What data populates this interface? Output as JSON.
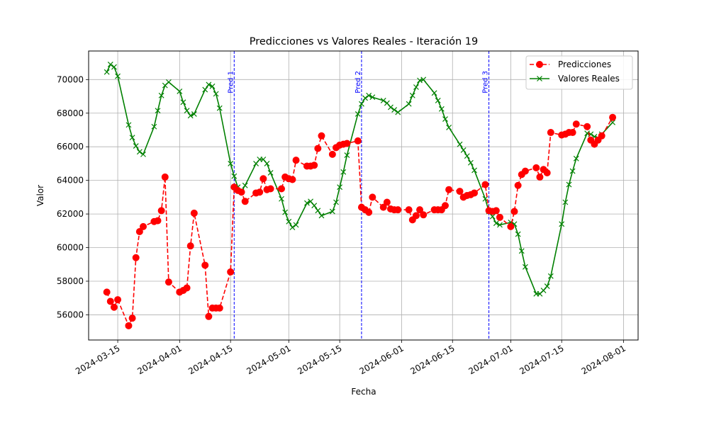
{
  "chart_data": {
    "type": "line",
    "title": "Predicciones vs Valores Reales - Iteración 19",
    "xlabel": "Fecha",
    "ylabel": "Valor",
    "x_type": "date",
    "xlim": [
      "2024-03-07",
      "2024-08-05"
    ],
    "ylim": [
      54500,
      71700
    ],
    "grid": true,
    "legend_position": "top-right",
    "x_ticks": [
      "2024-03-15",
      "2024-04-01",
      "2024-04-15",
      "2024-05-01",
      "2024-05-15",
      "2024-06-01",
      "2024-06-15",
      "2024-07-01",
      "2024-07-15",
      "2024-08-01"
    ],
    "y_ticks": [
      56000,
      58000,
      60000,
      62000,
      64000,
      66000,
      68000,
      70000
    ],
    "vertical_lines": [
      {
        "date": "2024-04-16",
        "label": "Pred 1",
        "color": "#0000ff"
      },
      {
        "date": "2024-05-21",
        "label": "Pred 2",
        "color": "#0000ff"
      },
      {
        "date": "2024-06-25",
        "label": "Pred 3",
        "color": "#0000ff"
      }
    ],
    "series": [
      {
        "name": "Predicciones",
        "color": "#ff0000",
        "style": "dashed",
        "marker": "circle",
        "points": [
          [
            "2024-03-12",
            57350
          ],
          [
            "2024-03-13",
            56800
          ],
          [
            "2024-03-14",
            56450
          ],
          [
            "2024-03-15",
            56900
          ],
          [
            "2024-03-18",
            55350
          ],
          [
            "2024-03-19",
            55800
          ],
          [
            "2024-03-20",
            59400
          ],
          [
            "2024-03-21",
            60950
          ],
          [
            "2024-03-22",
            61250
          ],
          [
            "2024-03-25",
            61550
          ],
          [
            "2024-03-26",
            61600
          ],
          [
            "2024-03-27",
            62200
          ],
          [
            "2024-03-28",
            64200
          ],
          [
            "2024-03-29",
            57950
          ],
          [
            "2024-04-01",
            57350
          ],
          [
            "2024-04-02",
            57450
          ],
          [
            "2024-04-03",
            57600
          ],
          [
            "2024-04-04",
            60100
          ],
          [
            "2024-04-05",
            62050
          ],
          [
            "2024-04-08",
            58950
          ],
          [
            "2024-04-09",
            55900
          ],
          [
            "2024-04-10",
            56400
          ],
          [
            "2024-04-11",
            56400
          ],
          [
            "2024-04-12",
            56400
          ],
          [
            "2024-04-15",
            58550
          ],
          [
            "2024-04-16",
            63600
          ],
          [
            "2024-04-17",
            63400
          ],
          [
            "2024-04-18",
            63300
          ],
          [
            "2024-04-19",
            62750
          ],
          [
            "2024-04-22",
            63250
          ],
          [
            "2024-04-23",
            63300
          ],
          [
            "2024-04-24",
            64100
          ],
          [
            "2024-04-25",
            63450
          ],
          [
            "2024-04-26",
            63500
          ],
          [
            "2024-04-29",
            63500
          ],
          [
            "2024-04-30",
            64200
          ],
          [
            "2024-05-01",
            64100
          ],
          [
            "2024-05-02",
            64050
          ],
          [
            "2024-05-03",
            65200
          ],
          [
            "2024-05-06",
            64850
          ],
          [
            "2024-05-07",
            64850
          ],
          [
            "2024-05-08",
            64900
          ],
          [
            "2024-05-09",
            65900
          ],
          [
            "2024-05-10",
            66650
          ],
          [
            "2024-05-13",
            65550
          ],
          [
            "2024-05-14",
            65950
          ],
          [
            "2024-05-15",
            66100
          ],
          [
            "2024-05-16",
            66150
          ],
          [
            "2024-05-17",
            66200
          ],
          [
            "2024-05-20",
            66350
          ],
          [
            "2024-05-21",
            62400
          ],
          [
            "2024-05-22",
            62250
          ],
          [
            "2024-05-23",
            62100
          ],
          [
            "2024-05-24",
            63000
          ],
          [
            "2024-05-27",
            62400
          ],
          [
            "2024-05-28",
            62700
          ],
          [
            "2024-05-29",
            62300
          ],
          [
            "2024-05-30",
            62250
          ],
          [
            "2024-05-31",
            62250
          ],
          [
            "2024-06-03",
            62250
          ],
          [
            "2024-06-04",
            61650
          ],
          [
            "2024-06-05",
            61900
          ],
          [
            "2024-06-06",
            62250
          ],
          [
            "2024-06-07",
            61950
          ],
          [
            "2024-06-10",
            62250
          ],
          [
            "2024-06-11",
            62250
          ],
          [
            "2024-06-12",
            62250
          ],
          [
            "2024-06-13",
            62500
          ],
          [
            "2024-06-14",
            63450
          ],
          [
            "2024-06-17",
            63350
          ],
          [
            "2024-06-18",
            63000
          ],
          [
            "2024-06-19",
            63100
          ],
          [
            "2024-06-20",
            63150
          ],
          [
            "2024-06-21",
            63250
          ],
          [
            "2024-06-24",
            63750
          ],
          [
            "2024-06-25",
            62200
          ],
          [
            "2024-06-26",
            62150
          ],
          [
            "2024-06-27",
            62200
          ],
          [
            "2024-06-28",
            61800
          ],
          [
            "2024-07-01",
            61250
          ],
          [
            "2024-07-02",
            62150
          ],
          [
            "2024-07-03",
            63700
          ],
          [
            "2024-07-04",
            64350
          ],
          [
            "2024-07-05",
            64550
          ],
          [
            "2024-07-08",
            64750
          ],
          [
            "2024-07-09",
            64200
          ],
          [
            "2024-07-10",
            64650
          ],
          [
            "2024-07-11",
            64450
          ],
          [
            "2024-07-12",
            66850
          ],
          [
            "2024-07-15",
            66700
          ],
          [
            "2024-07-16",
            66750
          ],
          [
            "2024-07-17",
            66850
          ],
          [
            "2024-07-18",
            66850
          ],
          [
            "2024-07-19",
            67350
          ],
          [
            "2024-07-22",
            67200
          ],
          [
            "2024-07-23",
            66400
          ],
          [
            "2024-07-24",
            66150
          ],
          [
            "2024-07-25",
            66400
          ],
          [
            "2024-07-26",
            66650
          ],
          [
            "2024-07-29",
            67750
          ]
        ]
      },
      {
        "name": "Valores Reales",
        "color": "#008000",
        "style": "solid",
        "marker": "x",
        "points": [
          [
            "2024-03-12",
            70450
          ],
          [
            "2024-03-13",
            70900
          ],
          [
            "2024-03-14",
            70750
          ],
          [
            "2024-03-15",
            70200
          ],
          [
            "2024-03-18",
            67300
          ],
          [
            "2024-03-19",
            66550
          ],
          [
            "2024-03-20",
            66050
          ],
          [
            "2024-03-21",
            65700
          ],
          [
            "2024-03-22",
            65550
          ],
          [
            "2024-03-25",
            67200
          ],
          [
            "2024-03-26",
            68150
          ],
          [
            "2024-03-27",
            69050
          ],
          [
            "2024-03-28",
            69650
          ],
          [
            "2024-03-29",
            69850
          ],
          [
            "2024-04-01",
            69300
          ],
          [
            "2024-04-02",
            68650
          ],
          [
            "2024-04-03",
            68150
          ],
          [
            "2024-04-04",
            67850
          ],
          [
            "2024-04-05",
            67950
          ],
          [
            "2024-04-08",
            69400
          ],
          [
            "2024-04-09",
            69700
          ],
          [
            "2024-04-10",
            69600
          ],
          [
            "2024-04-11",
            69150
          ],
          [
            "2024-04-12",
            68300
          ],
          [
            "2024-04-15",
            65000
          ],
          [
            "2024-04-16",
            64250
          ],
          [
            "2024-04-17",
            63600
          ],
          [
            "2024-04-18",
            63350
          ],
          [
            "2024-04-19",
            63700
          ],
          [
            "2024-04-22",
            65000
          ],
          [
            "2024-04-23",
            65250
          ],
          [
            "2024-04-24",
            65250
          ],
          [
            "2024-04-25",
            65000
          ],
          [
            "2024-04-26",
            64450
          ],
          [
            "2024-04-29",
            62900
          ],
          [
            "2024-04-30",
            62100
          ],
          [
            "2024-05-01",
            61550
          ],
          [
            "2024-05-02",
            61200
          ],
          [
            "2024-05-03",
            61350
          ],
          [
            "2024-05-06",
            62650
          ],
          [
            "2024-05-07",
            62750
          ],
          [
            "2024-05-08",
            62500
          ],
          [
            "2024-05-09",
            62200
          ],
          [
            "2024-05-10",
            61900
          ],
          [
            "2024-05-13",
            62150
          ],
          [
            "2024-05-14",
            62700
          ],
          [
            "2024-05-15",
            63600
          ],
          [
            "2024-05-16",
            64500
          ],
          [
            "2024-05-17",
            65500
          ],
          [
            "2024-05-20",
            67950
          ],
          [
            "2024-05-21",
            68550
          ],
          [
            "2024-05-22",
            68900
          ],
          [
            "2024-05-23",
            69050
          ],
          [
            "2024-05-24",
            68950
          ],
          [
            "2024-05-27",
            68750
          ],
          [
            "2024-05-28",
            68600
          ],
          [
            "2024-05-29",
            68350
          ],
          [
            "2024-05-30",
            68200
          ],
          [
            "2024-05-31",
            68050
          ],
          [
            "2024-06-03",
            68550
          ],
          [
            "2024-06-04",
            69050
          ],
          [
            "2024-06-05",
            69550
          ],
          [
            "2024-06-06",
            69950
          ],
          [
            "2024-06-07",
            70000
          ],
          [
            "2024-06-10",
            69200
          ],
          [
            "2024-06-11",
            68750
          ],
          [
            "2024-06-12",
            68250
          ],
          [
            "2024-06-13",
            67650
          ],
          [
            "2024-06-14",
            67150
          ],
          [
            "2024-06-17",
            66150
          ],
          [
            "2024-06-18",
            65800
          ],
          [
            "2024-06-19",
            65450
          ],
          [
            "2024-06-20",
            65050
          ],
          [
            "2024-06-21",
            64600
          ],
          [
            "2024-06-24",
            62900
          ],
          [
            "2024-06-25",
            62150
          ],
          [
            "2024-06-26",
            61850
          ],
          [
            "2024-06-27",
            61450
          ],
          [
            "2024-06-28",
            61350
          ],
          [
            "2024-07-01",
            61500
          ],
          [
            "2024-07-02",
            61400
          ],
          [
            "2024-07-03",
            60800
          ],
          [
            "2024-07-04",
            59800
          ],
          [
            "2024-07-05",
            58850
          ],
          [
            "2024-07-08",
            57250
          ],
          [
            "2024-07-09",
            57250
          ],
          [
            "2024-07-10",
            57450
          ],
          [
            "2024-07-11",
            57700
          ],
          [
            "2024-07-12",
            58300
          ],
          [
            "2024-07-15",
            61400
          ],
          [
            "2024-07-16",
            62700
          ],
          [
            "2024-07-17",
            63750
          ],
          [
            "2024-07-18",
            64550
          ],
          [
            "2024-07-19",
            65300
          ],
          [
            "2024-07-22",
            66800
          ],
          [
            "2024-07-23",
            66750
          ],
          [
            "2024-07-24",
            66600
          ],
          [
            "2024-07-25",
            66500
          ],
          [
            "2024-07-26",
            66750
          ],
          [
            "2024-07-29",
            67450
          ]
        ]
      }
    ]
  }
}
